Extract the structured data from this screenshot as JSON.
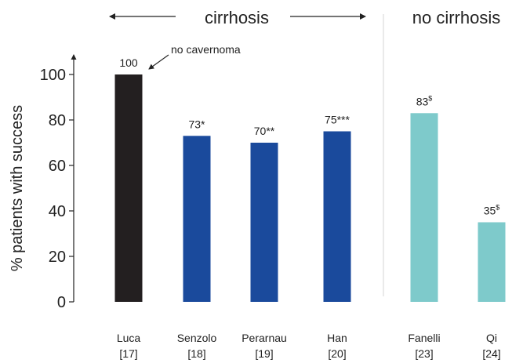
{
  "chart_data": {
    "type": "bar",
    "ylabel": "% patients with success",
    "ylim": [
      0,
      100
    ],
    "yticks": [
      0,
      20,
      40,
      60,
      80,
      100
    ],
    "grid": false,
    "categories": [
      {
        "name": "Luca",
        "ref": "[17]"
      },
      {
        "name": "Senzolo",
        "ref": "[18]"
      },
      {
        "name": "Perarnau",
        "ref": "[19]"
      },
      {
        "name": "Han",
        "ref": "[20]"
      },
      {
        "name": "Fanelli",
        "ref": "[23]"
      },
      {
        "name": "Qi",
        "ref": "[24]"
      }
    ],
    "values": [
      100,
      73,
      70,
      75,
      83,
      35
    ],
    "value_labels": [
      {
        "main": "100",
        "sup": ""
      },
      {
        "main": "73*",
        "sup": ""
      },
      {
        "main": "70**",
        "sup": ""
      },
      {
        "main": "75***",
        "sup": ""
      },
      {
        "main": "83",
        "sup": "$"
      },
      {
        "main": "35",
        "sup": "$"
      }
    ],
    "bar_colors": [
      "#231f20",
      "#1a4a9c",
      "#1a4a9c",
      "#1a4a9c",
      "#7ecacb",
      "#7ecacb"
    ],
    "groups": [
      {
        "label": "cirrhosis",
        "start": 0,
        "end": 3
      },
      {
        "label": "no cirrhosis",
        "start": 4,
        "end": 5
      }
    ],
    "annotation": {
      "text": "no cavernoma",
      "target_index": 0
    }
  }
}
